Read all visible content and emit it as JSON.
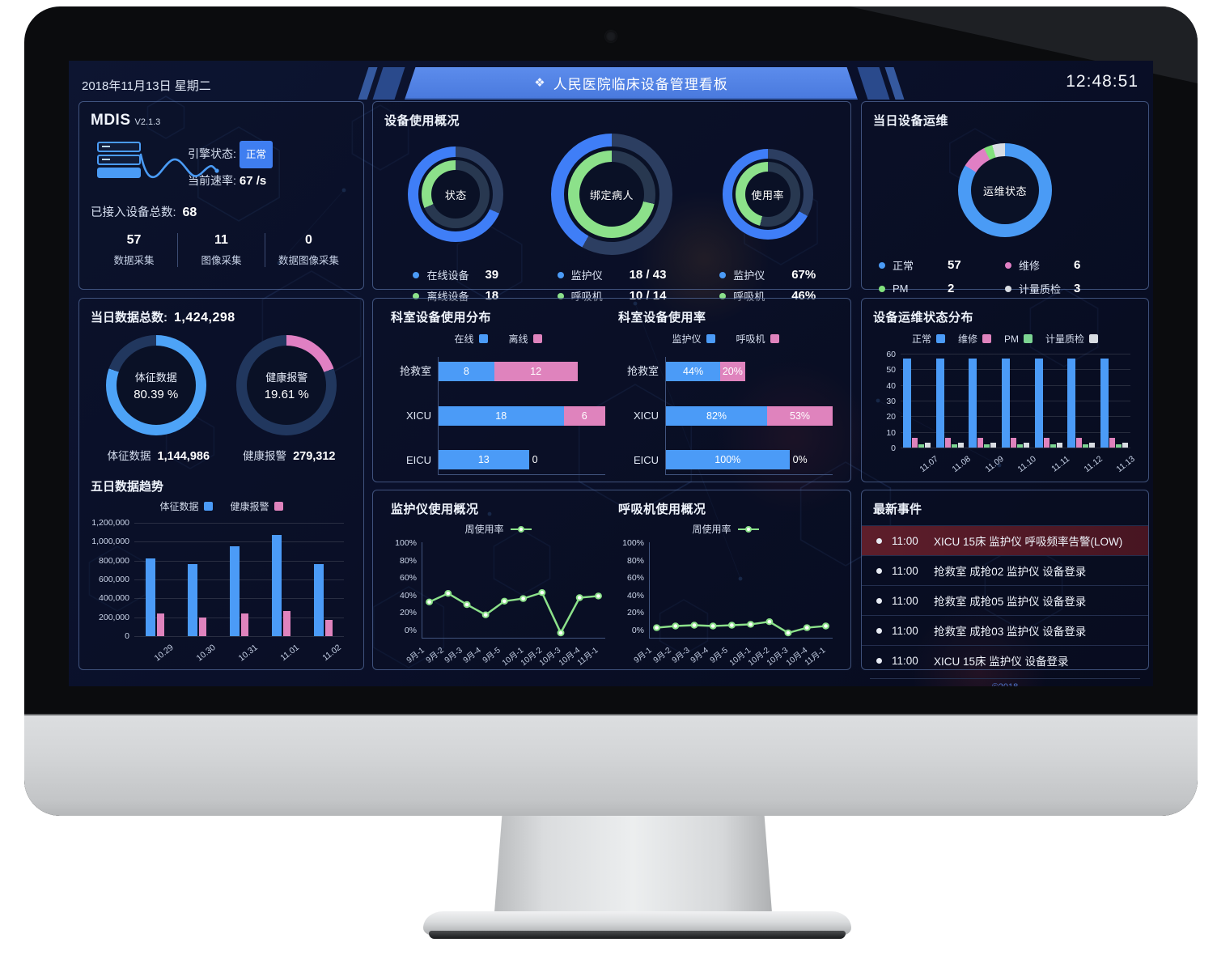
{
  "header": {
    "date": "2018年11月13日 星期二",
    "icon": "❖",
    "title": "人民医院临床设备管理看板",
    "time": "12:48:51"
  },
  "mdis": {
    "name": "MDIS",
    "version": "V2.1.3",
    "engine_label": "引擎状态:",
    "engine_status": "正常",
    "rate_label": "当前速率:",
    "rate_value": "67 /s",
    "total_label": "已接入设备总数:",
    "total_value": "68",
    "stats": [
      {
        "value": "57",
        "label": "数据采集"
      },
      {
        "value": "11",
        "label": "图像采集"
      },
      {
        "value": "0",
        "label": "数据图像采集"
      }
    ]
  },
  "usage_overview": {
    "title": "设备使用概况",
    "colors": {
      "blue": "#3f7ef7",
      "green": "#8ce18a",
      "rest_outer": "#2c3e61",
      "rest_inner": "#283850"
    },
    "donuts": [
      {
        "center": "状态",
        "outer_pct": 68.4,
        "inner_pct": 31.6,
        "legend": [
          {
            "color": "#4b9bf7",
            "label": "在线设备",
            "value": "39"
          },
          {
            "color": "#8ce18a",
            "label": "离线设备",
            "value": "18"
          }
        ]
      },
      {
        "center": "绑定病人",
        "outer_pct": 41.9,
        "inner_pct": 71.4,
        "legend": [
          {
            "color": "#4b9bf7",
            "label": "监护仪",
            "value": "18 / 43"
          },
          {
            "color": "#8ce18a",
            "label": "呼吸机",
            "value": "10 / 14"
          }
        ]
      },
      {
        "center": "使用率",
        "outer_pct": 67,
        "inner_pct": 46,
        "legend": [
          {
            "color": "#4b9bf7",
            "label": "监护仪",
            "value": "67%"
          },
          {
            "color": "#8ce18a",
            "label": "呼吸机",
            "value": "46%"
          }
        ]
      }
    ]
  },
  "ops_today": {
    "title": "当日设备运维",
    "center": "运维状态",
    "segments": [
      {
        "label": "正常",
        "value": 57,
        "color": "#4a9bf5"
      },
      {
        "label": "维修",
        "value": 6,
        "color": "#e07fc4"
      },
      {
        "label": "PM",
        "value": 2,
        "color": "#82e27d"
      },
      {
        "label": "计量质检",
        "value": 3,
        "color": "#d9dde3"
      }
    ]
  },
  "data_today": {
    "title_label": "当日数据总数:",
    "title_value": "1,424,298",
    "rest_color": "#21375e",
    "donuts": [
      {
        "center_line1": "体征数据",
        "center_line2": "80.39 %",
        "pct": 80.39,
        "color": "#4da3f7",
        "bottom_label": "体征数据",
        "bottom_value": "1,144,986"
      },
      {
        "center_line1": "健康报警",
        "center_line2": "19.61 %",
        "pct": 19.61,
        "color": "#e080c3",
        "bottom_label": "健康报警",
        "bottom_value": "279,312"
      }
    ]
  },
  "five_day": {
    "title": "五日数据趋势",
    "chart_data": {
      "type": "bar",
      "categories": [
        "10.29",
        "10.30",
        "10.31",
        "11.01",
        "11.02"
      ],
      "series": [
        {
          "name": "体征数据",
          "color": "#4b9bf7",
          "values": [
            820000,
            760000,
            955000,
            1070000,
            760000
          ]
        },
        {
          "name": "健康报警",
          "color": "#df83bd",
          "values": [
            240000,
            200000,
            240000,
            270000,
            175000
          ]
        }
      ],
      "ylim": [
        0,
        1200000
      ],
      "yticks": [
        "1,200,000",
        "1,000,000",
        "800,000",
        "600,000",
        "400,000",
        "200,000",
        "0"
      ]
    }
  },
  "dept": {
    "dist": {
      "title": "科室设备使用分布",
      "legend": [
        {
          "label": "在线",
          "color": "#4b9bf7"
        },
        {
          "label": "离线",
          "color": "#df83bd"
        }
      ],
      "max_scale": 24,
      "rows": [
        {
          "label": "抢救室",
          "a": 8,
          "a_text": "8",
          "b": 12,
          "b_text": "12"
        },
        {
          "label": "XICU",
          "a": 18,
          "a_text": "18",
          "b": 6,
          "b_text": "6"
        },
        {
          "label": "EICU",
          "a": 13,
          "a_text": "13",
          "b": 0,
          "b_text": "0"
        }
      ]
    },
    "rate": {
      "title": "科室设备使用率",
      "legend": [
        {
          "label": "监护仪",
          "color": "#4b9bf7"
        },
        {
          "label": "呼吸机",
          "color": "#df83bd"
        }
      ],
      "max_scale": 135,
      "rows": [
        {
          "label": "抢救室",
          "a": 44,
          "a_text": "44%",
          "b": 20,
          "b_text": "20%"
        },
        {
          "label": "XICU",
          "a": 82,
          "a_text": "82%",
          "b": 53,
          "b_text": "53%"
        },
        {
          "label": "EICU",
          "a": 100,
          "a_text": "100%",
          "b": 0,
          "b_text": "0%"
        }
      ]
    }
  },
  "ops_dist": {
    "title": "设备运维状态分布",
    "chart_data": {
      "type": "bar",
      "categories": [
        "11.07",
        "11.08",
        "11.09",
        "11.10",
        "11.11",
        "11.12",
        "11.13"
      ],
      "series": [
        {
          "name": "正常",
          "color": "#4b9bf7",
          "values": [
            57,
            57,
            57,
            57,
            57,
            57,
            57
          ]
        },
        {
          "name": "维修",
          "color": "#df83bd",
          "values": [
            6,
            6,
            6,
            6,
            6,
            6,
            6
          ]
        },
        {
          "name": "PM",
          "color": "#7cd492",
          "values": [
            2,
            2,
            2,
            2,
            2,
            2,
            2
          ]
        },
        {
          "name": "计量质检",
          "color": "#d8dce2",
          "values": [
            3,
            3,
            3,
            3,
            3,
            3,
            3
          ]
        }
      ],
      "ylim": [
        0,
        60
      ],
      "yticks": [
        "60",
        "50",
        "40",
        "30",
        "20",
        "10",
        "0"
      ]
    }
  },
  "monitor_usage": {
    "title": "监护仪使用概况",
    "legend_label": "周使用率",
    "chart_data": {
      "type": "line",
      "x": [
        "9月-1",
        "9月-2",
        "9月-3",
        "9月-4",
        "9月-5",
        "10月-1",
        "10月-2",
        "10月-3",
        "10月-4",
        "11月-1"
      ],
      "y": [
        36,
        46,
        33,
        21,
        37,
        40,
        47,
        0,
        41,
        43
      ],
      "line_color": "#8ce18a",
      "ylim": [
        0,
        100
      ],
      "yticks": [
        "100%",
        "80%",
        "60%",
        "40%",
        "20%",
        "0%"
      ]
    }
  },
  "vent_usage": {
    "title": "呼吸机使用概况",
    "legend_label": "周使用率",
    "chart_data": {
      "type": "line",
      "x": [
        "9月-1",
        "9月-2",
        "9月-3",
        "9月-4",
        "9月-5",
        "10月-1",
        "10月-2",
        "10月-3",
        "10月-4",
        "11月-1"
      ],
      "y": [
        6,
        8,
        9,
        8,
        9,
        10,
        13,
        0,
        6,
        8
      ],
      "line_color": "#8ce18a",
      "ylim": [
        0,
        100
      ],
      "yticks": [
        "100%",
        "80%",
        "60%",
        "40%",
        "20%",
        "0%"
      ]
    }
  },
  "events": {
    "title": "最新事件",
    "rows": [
      {
        "time": "11:00",
        "text": "XICU 15床 监护仪 呼吸频率告警(LOW)",
        "alert": true
      },
      {
        "time": "11:00",
        "text": "抢救室 成抢02 监护仪 设备登录",
        "alert": false
      },
      {
        "time": "11:00",
        "text": "抢救室 成抢05 监护仪 设备登录",
        "alert": false
      },
      {
        "time": "11:00",
        "text": "抢救室 成抢03 监护仪 设备登录",
        "alert": false
      },
      {
        "time": "11:00",
        "text": "XICU 15床 监护仪 设备登录",
        "alert": false
      }
    ],
    "footer": "©2018"
  }
}
